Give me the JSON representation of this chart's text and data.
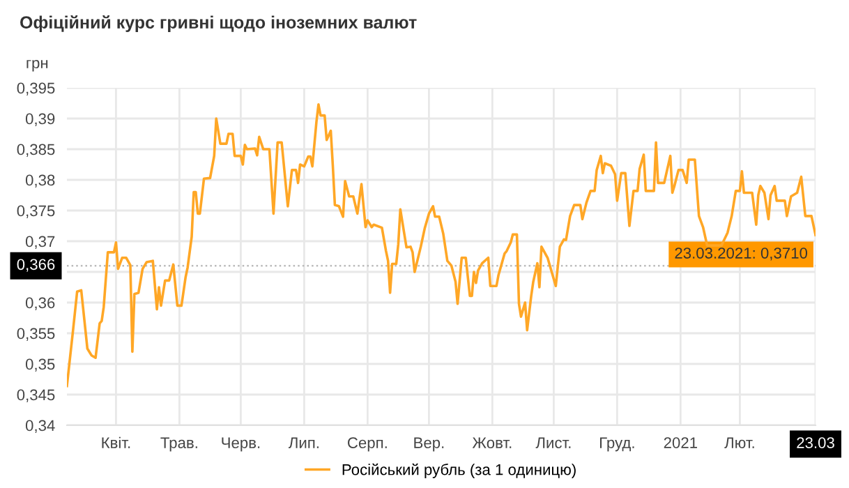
{
  "chart_data": {
    "type": "line",
    "title": "Офіційний курс гривні щодо іноземних валют",
    "ylabel": "грн",
    "xlim": [
      "2020-03-22",
      "2021-03-23"
    ],
    "xticks": [
      {
        "value": "2020-04-15",
        "label": "Квіт."
      },
      {
        "value": "2020-05-16",
        "label": "Трав."
      },
      {
        "value": "2020-06-15",
        "label": "Черв."
      },
      {
        "value": "2020-07-16",
        "label": "Лип."
      },
      {
        "value": "2020-08-16",
        "label": "Серп."
      },
      {
        "value": "2020-09-15",
        "label": "Вер."
      },
      {
        "value": "2020-10-16",
        "label": "Жовт."
      },
      {
        "value": "2020-11-15",
        "label": "Лист."
      },
      {
        "value": "2020-12-16",
        "label": "Груд."
      },
      {
        "value": "2021-01-16",
        "label": "2021"
      },
      {
        "value": "2021-02-14",
        "label": "Лют."
      },
      {
        "value": "2021-03-23",
        "label": "23.03"
      }
    ],
    "ylim": [
      0.34,
      0.395
    ],
    "yticks": [
      {
        "value": 0.34,
        "label": "0,34"
      },
      {
        "value": 0.345,
        "label": "0,345"
      },
      {
        "value": 0.35,
        "label": "0,35"
      },
      {
        "value": 0.355,
        "label": "0,355"
      },
      {
        "value": 0.36,
        "label": "0,36"
      },
      {
        "value": 0.365,
        "label": null
      },
      {
        "value": 0.37,
        "label": "0,37"
      },
      {
        "value": 0.375,
        "label": "0,375"
      },
      {
        "value": 0.38,
        "label": "0,38"
      },
      {
        "value": 0.385,
        "label": "0,385"
      },
      {
        "value": 0.39,
        "label": "0,39"
      },
      {
        "value": 0.395,
        "label": "0,395"
      }
    ],
    "grid": true,
    "legend": "bottom",
    "marker": "none",
    "line_style": "solid",
    "ref_lines": [
      {
        "axis": "y",
        "value": 0.366,
        "label": "0,366",
        "color": "#bbbbbb",
        "line_style": "dotted"
      }
    ],
    "annotations": [
      {
        "text": "23.03.2021: 0,3710",
        "x": "2021-03-23",
        "y": 0.371
      }
    ],
    "series": [
      {
        "name": "Російський рубль (за 1 одиницю)",
        "color": "#ffa726",
        "x": [
          "2020-03-22",
          "2020-03-25",
          "2020-03-27",
          "2020-03-29",
          "2020-04-01",
          "2020-04-03",
          "2020-04-05",
          "2020-04-07",
          "2020-04-08",
          "2020-04-09",
          "2020-04-11",
          "2020-04-14",
          "2020-04-15",
          "2020-04-16",
          "2020-04-18",
          "2020-04-20",
          "2020-04-22",
          "2020-04-23",
          "2020-04-24",
          "2020-04-26",
          "2020-04-28",
          "2020-04-30",
          "2020-05-03",
          "2020-05-05",
          "2020-05-06",
          "2020-05-07",
          "2020-05-09",
          "2020-05-11",
          "2020-05-13",
          "2020-05-15",
          "2020-05-17",
          "2020-05-19",
          "2020-05-20",
          "2020-05-22",
          "2020-05-23",
          "2020-05-24",
          "2020-05-25",
          "2020-05-26",
          "2020-05-28",
          "2020-05-31",
          "2020-06-02",
          "2020-06-03",
          "2020-06-05",
          "2020-06-08",
          "2020-06-09",
          "2020-06-11",
          "2020-06-12",
          "2020-06-15",
          "2020-06-16",
          "2020-06-17",
          "2020-06-18",
          "2020-06-22",
          "2020-06-23",
          "2020-06-24",
          "2020-06-26",
          "2020-06-29",
          "2020-07-01",
          "2020-07-03",
          "2020-07-05",
          "2020-07-08",
          "2020-07-10",
          "2020-07-12",
          "2020-07-13",
          "2020-07-14",
          "2020-07-16",
          "2020-07-18",
          "2020-07-19",
          "2020-07-20",
          "2020-07-22",
          "2020-07-23",
          "2020-07-24",
          "2020-07-26",
          "2020-07-27",
          "2020-07-29",
          "2020-07-30",
          "2020-07-31",
          "2020-08-02",
          "2020-08-04",
          "2020-08-05",
          "2020-08-07",
          "2020-08-09",
          "2020-08-11",
          "2020-08-13",
          "2020-08-15",
          "2020-08-16",
          "2020-08-18",
          "2020-08-19",
          "2020-08-23",
          "2020-08-25",
          "2020-08-26",
          "2020-08-27",
          "2020-08-28",
          "2020-08-30",
          "2020-08-31",
          "2020-09-01",
          "2020-09-04",
          "2020-09-06",
          "2020-09-07",
          "2020-09-08",
          "2020-09-11",
          "2020-09-13",
          "2020-09-15",
          "2020-09-17",
          "2020-09-18",
          "2020-09-20",
          "2020-09-22",
          "2020-09-24",
          "2020-09-26",
          "2020-09-28",
          "2020-09-29",
          "2020-10-01",
          "2020-10-03",
          "2020-10-05",
          "2020-10-06",
          "2020-10-07",
          "2020-10-08",
          "2020-10-09",
          "2020-10-11",
          "2020-10-14",
          "2020-10-15",
          "2020-10-18",
          "2020-10-19",
          "2020-10-22",
          "2020-10-23",
          "2020-10-25",
          "2020-10-26",
          "2020-10-28",
          "2020-10-29",
          "2020-10-30",
          "2020-11-01",
          "2020-11-02",
          "2020-11-04",
          "2020-11-05",
          "2020-11-07",
          "2020-11-08",
          "2020-11-09",
          "2020-11-12",
          "2020-11-14",
          "2020-11-16",
          "2020-11-18",
          "2020-11-20",
          "2020-11-21",
          "2020-11-23",
          "2020-11-25",
          "2020-11-28",
          "2020-11-29",
          "2020-12-01",
          "2020-12-03",
          "2020-12-05",
          "2020-12-06",
          "2020-12-08",
          "2020-12-09",
          "2020-12-10",
          "2020-12-13",
          "2020-12-15",
          "2020-12-16",
          "2020-12-18",
          "2020-12-20",
          "2020-12-22",
          "2020-12-24",
          "2020-12-26",
          "2020-12-27",
          "2020-12-29",
          "2020-12-30",
          "2021-01-03",
          "2021-01-04",
          "2021-01-05",
          "2021-01-08",
          "2021-01-11",
          "2021-01-12",
          "2021-01-13",
          "2021-01-15",
          "2021-01-17",
          "2021-01-19",
          "2021-01-20",
          "2021-01-23",
          "2021-01-25",
          "2021-01-27",
          "2021-01-29",
          "2021-02-05",
          "2021-02-08",
          "2021-02-10",
          "2021-02-12",
          "2021-02-14",
          "2021-02-15",
          "2021-02-16",
          "2021-02-20",
          "2021-02-22",
          "2021-02-23",
          "2021-02-24",
          "2021-02-26",
          "2021-02-28",
          "2021-03-01",
          "2021-03-03",
          "2021-03-04",
          "2021-03-08",
          "2021-03-09",
          "2021-03-11",
          "2021-03-14",
          "2021-03-16",
          "2021-03-18",
          "2021-03-21",
          "2021-03-23"
        ],
        "values": [
          0.3464,
          0.3555,
          0.3618,
          0.362,
          0.3525,
          0.3514,
          0.351,
          0.3566,
          0.357,
          0.3593,
          0.3682,
          0.3682,
          0.3698,
          0.3655,
          0.3673,
          0.3673,
          0.3661,
          0.352,
          0.3614,
          0.3616,
          0.3655,
          0.3666,
          0.3668,
          0.3589,
          0.3625,
          0.3595,
          0.3636,
          0.3636,
          0.3662,
          0.3595,
          0.3595,
          0.3641,
          0.3657,
          0.3707,
          0.378,
          0.378,
          0.3745,
          0.3745,
          0.3802,
          0.3803,
          0.3839,
          0.39,
          0.3859,
          0.3859,
          0.3875,
          0.3875,
          0.3839,
          0.3839,
          0.3825,
          0.3857,
          0.385,
          0.3851,
          0.384,
          0.387,
          0.385,
          0.385,
          0.3745,
          0.3861,
          0.3861,
          0.3757,
          0.3816,
          0.3816,
          0.3795,
          0.3825,
          0.3822,
          0.3838,
          0.3838,
          0.3822,
          0.3895,
          0.3923,
          0.3905,
          0.3905,
          0.3865,
          0.388,
          0.3823,
          0.3759,
          0.3757,
          0.374,
          0.3798,
          0.3773,
          0.3773,
          0.3745,
          0.3793,
          0.3723,
          0.3734,
          0.3723,
          0.3727,
          0.3722,
          0.3684,
          0.3668,
          0.3616,
          0.3663,
          0.3663,
          0.3695,
          0.3752,
          0.369,
          0.3691,
          0.3682,
          0.365,
          0.3691,
          0.3722,
          0.3745,
          0.3757,
          0.374,
          0.374,
          0.3712,
          0.3668,
          0.366,
          0.3634,
          0.3598,
          0.3673,
          0.3673,
          0.3611,
          0.3611,
          0.365,
          0.3632,
          0.3652,
          0.3664,
          0.3673,
          0.3627,
          0.3627,
          0.3645,
          0.368,
          0.3684,
          0.3698,
          0.3711,
          0.3711,
          0.3598,
          0.3577,
          0.36,
          0.3555,
          0.3611,
          0.3634,
          0.3664,
          0.3625,
          0.3691,
          0.3673,
          0.365,
          0.3627,
          0.3691,
          0.3703,
          0.3702,
          0.3741,
          0.3759,
          0.3759,
          0.3736,
          0.3763,
          0.3782,
          0.3782,
          0.3816,
          0.3839,
          0.3811,
          0.3827,
          0.3823,
          0.3809,
          0.3766,
          0.3811,
          0.3811,
          0.3725,
          0.3782,
          0.3782,
          0.3818,
          0.3841,
          0.3782,
          0.3782,
          0.3861,
          0.3795,
          0.3795,
          0.3839,
          0.3779,
          0.379,
          0.3816,
          0.3816,
          0.3795,
          0.3833,
          0.3833,
          0.3741,
          0.3723,
          0.3693,
          0.3693,
          0.3714,
          0.3741,
          0.3782,
          0.3782,
          0.3814,
          0.3779,
          0.3779,
          0.3727,
          0.3775,
          0.379,
          0.3779,
          0.3736,
          0.3775,
          0.379,
          0.3766,
          0.3766,
          0.3741,
          0.3773,
          0.3779,
          0.3805,
          0.3741,
          0.3741,
          0.371
        ]
      }
    ]
  }
}
